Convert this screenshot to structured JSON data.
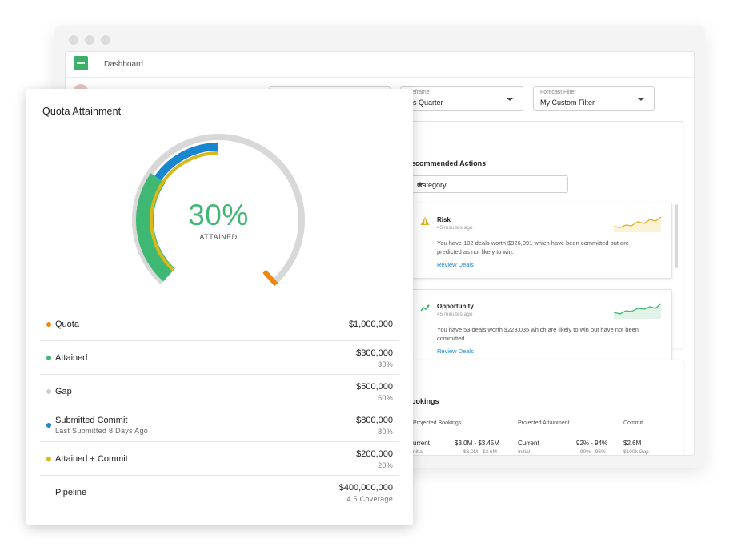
{
  "app": {
    "title": "Dashboard"
  },
  "filters": {
    "timeframe": {
      "label": "meframe",
      "value": "his Quarter"
    },
    "forecast": {
      "label": "Forecast Filter",
      "value": "My Custom Filter"
    }
  },
  "actions": {
    "title": "ecommended Actions",
    "category_value": "Category",
    "items": [
      {
        "title": "Risk",
        "time": "45 minutes ago",
        "text": "You have 102 deals worth $926,991 which have been committed but are predicted as not likely to win.",
        "link": "Review Deals",
        "icon": "warning-icon",
        "color": "#e0b020"
      },
      {
        "title": "Opportunity",
        "time": "45 minutes ago",
        "text": "You have 53 deals worth $223,035 which are likely to win but have not been committed.",
        "link": "Review Deals",
        "icon": "trending-up-icon",
        "color": "#3fb874"
      }
    ]
  },
  "bookings": {
    "title": "ookings",
    "columns": [
      {
        "label": "Projected Bookings",
        "current_label": "urrent",
        "current_value": "$3.0M - $3.45M",
        "initial_label": "nitial",
        "initial_value": "$3.0M - $3.6M"
      },
      {
        "label": "Projected Attainment",
        "current_label": "Current",
        "current_value": "92% - 94%",
        "initial_label": "Initial",
        "initial_value": "90% - 96%"
      },
      {
        "label": "Commit",
        "current_value": "$2.6M",
        "initial_value": "$100k Gap"
      }
    ]
  },
  "quota": {
    "title": "Quota Attainment",
    "percent_text": "30%",
    "percent_label": "ATTAINED",
    "gauge": {
      "attained_fraction": 0.3,
      "attained_commit_fraction": 0.5,
      "submitted_commit_fraction": 0.8,
      "quota_fraction": 1.0,
      "colors": {
        "attained": "#3fb874",
        "commit": "#1a86d0",
        "attained_commit": "#d9b81a",
        "gap": "#d8d8d8",
        "quota": "#f0860f"
      }
    },
    "rows": [
      {
        "name": "Quota",
        "value": "$1,000,000",
        "pct": "",
        "sub": "",
        "color": "#f0860f"
      },
      {
        "name": "Attained",
        "value": "$300,000",
        "pct": "30%",
        "sub": "",
        "color": "#3fb874"
      },
      {
        "name": "Gap",
        "value": "$500,000",
        "pct": "50%",
        "sub": "",
        "color": "#cfcfcf"
      },
      {
        "name": "Submitted Commit",
        "value": "$800,000",
        "pct": "80%",
        "sub": "Last Submitted 8 Days Ago",
        "color": "#1a86d0"
      },
      {
        "name": "Attained + Commit",
        "value": "$200,000",
        "pct": "20%",
        "sub": "",
        "color": "#d9b81a"
      },
      {
        "name": "Pipeline",
        "value": "$400,000,000",
        "pct": "4.5 Coverage",
        "sub": "",
        "color": ""
      }
    ]
  }
}
